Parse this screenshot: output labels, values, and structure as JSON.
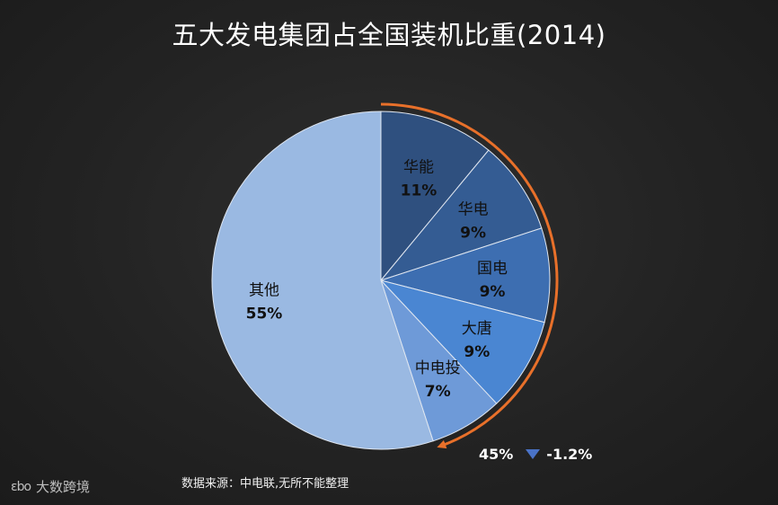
{
  "chart_data": {
    "type": "pie",
    "title": "五大发电集团占全国装机比重(2014)",
    "slices": [
      {
        "label": "华能",
        "value": 11,
        "display": "11%",
        "color": "#2f507f"
      },
      {
        "label": "华电",
        "value": 9,
        "display": "9%",
        "color": "#345c93"
      },
      {
        "label": "国电",
        "value": 9,
        "display": "9%",
        "color": "#3d6eb1"
      },
      {
        "label": "大唐",
        "value": 9,
        "display": "9%",
        "color": "#4a86d2"
      },
      {
        "label": "中电投",
        "value": 7,
        "display": "7%",
        "color": "#6e9ad8"
      },
      {
        "label": "其他",
        "value": 55,
        "display": "55%",
        "color": "#9ab9e2"
      }
    ],
    "annotation": {
      "share": "45%",
      "change": "-1.2%",
      "arc_color": "#e8702a",
      "arrow_color": "#4a73c8"
    }
  },
  "source_text": "数据来源：中电联,无所不能整理",
  "watermark": {
    "logo": "εbo",
    "text": "大数跨境"
  }
}
